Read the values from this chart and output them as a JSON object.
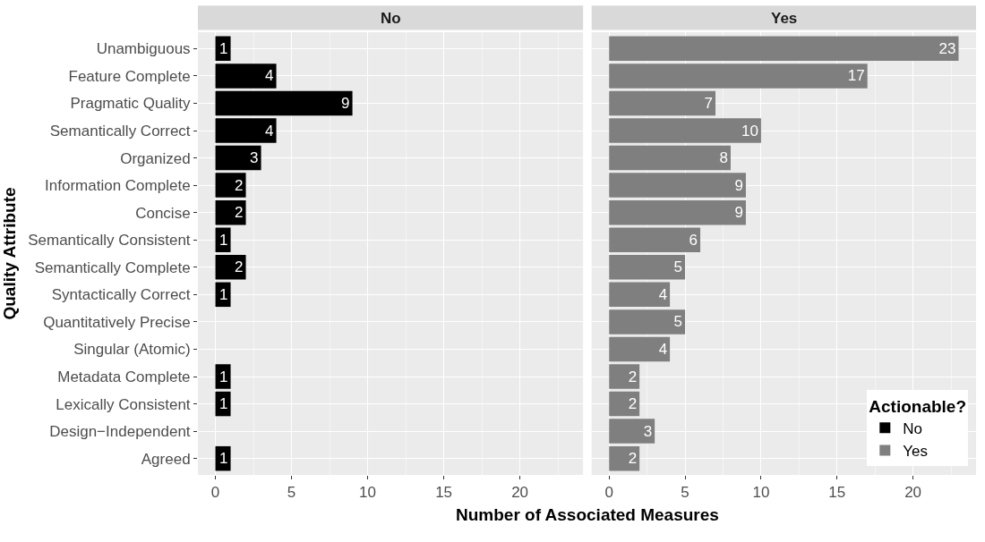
{
  "chart_data": [
    {
      "type": "bar",
      "title": "No",
      "orientation": "horizontal",
      "ylabel": "Quality Attribute",
      "xlabel": "Number of Associated Measures",
      "categories": [
        "Unambiguous",
        "Feature Complete",
        "Pragmatic Quality",
        "Semantically Correct",
        "Organized",
        "Information Complete",
        "Concise",
        "Semantically Consistent",
        "Semantically Complete",
        "Syntactically Correct",
        "Quantitatively Precise",
        "Singular (Atomic)",
        "Metadata Complete",
        "Lexically Consistent",
        "Design−Independent",
        "Agreed"
      ],
      "series": [
        {
          "name": "No",
          "color": "#000000",
          "values": [
            1,
            4,
            9,
            4,
            3,
            2,
            2,
            1,
            2,
            1,
            null,
            null,
            1,
            1,
            null,
            1
          ]
        }
      ],
      "xlim": [
        -1.15,
        24.15
      ],
      "xticks": [
        0,
        5,
        10,
        15,
        20
      ],
      "grid": true,
      "data_labels": true
    },
    {
      "type": "bar",
      "title": "Yes",
      "orientation": "horizontal",
      "legend_title": "Actionable?",
      "legend": "bottom right",
      "categories": [
        "Unambiguous",
        "Feature Complete",
        "Pragmatic Quality",
        "Semantically Correct",
        "Organized",
        "Information Complete",
        "Concise",
        "Semantically Consistent",
        "Semantically Complete",
        "Syntactically Correct",
        "Quantitatively Precise",
        "Singular (Atomic)",
        "Metadata Complete",
        "Lexically Consistent",
        "Design−Independent",
        "Agreed"
      ],
      "series": [
        {
          "name": "Yes",
          "color": "#7f7f7f",
          "values": [
            23,
            17,
            7,
            10,
            8,
            9,
            9,
            6,
            5,
            4,
            5,
            4,
            2,
            2,
            3,
            2
          ]
        }
      ],
      "xlim": [
        -1.15,
        24.15
      ],
      "xticks": [
        0,
        5,
        10,
        15,
        20
      ],
      "grid": true,
      "data_labels": true,
      "tick_labels": "x"
    }
  ]
}
